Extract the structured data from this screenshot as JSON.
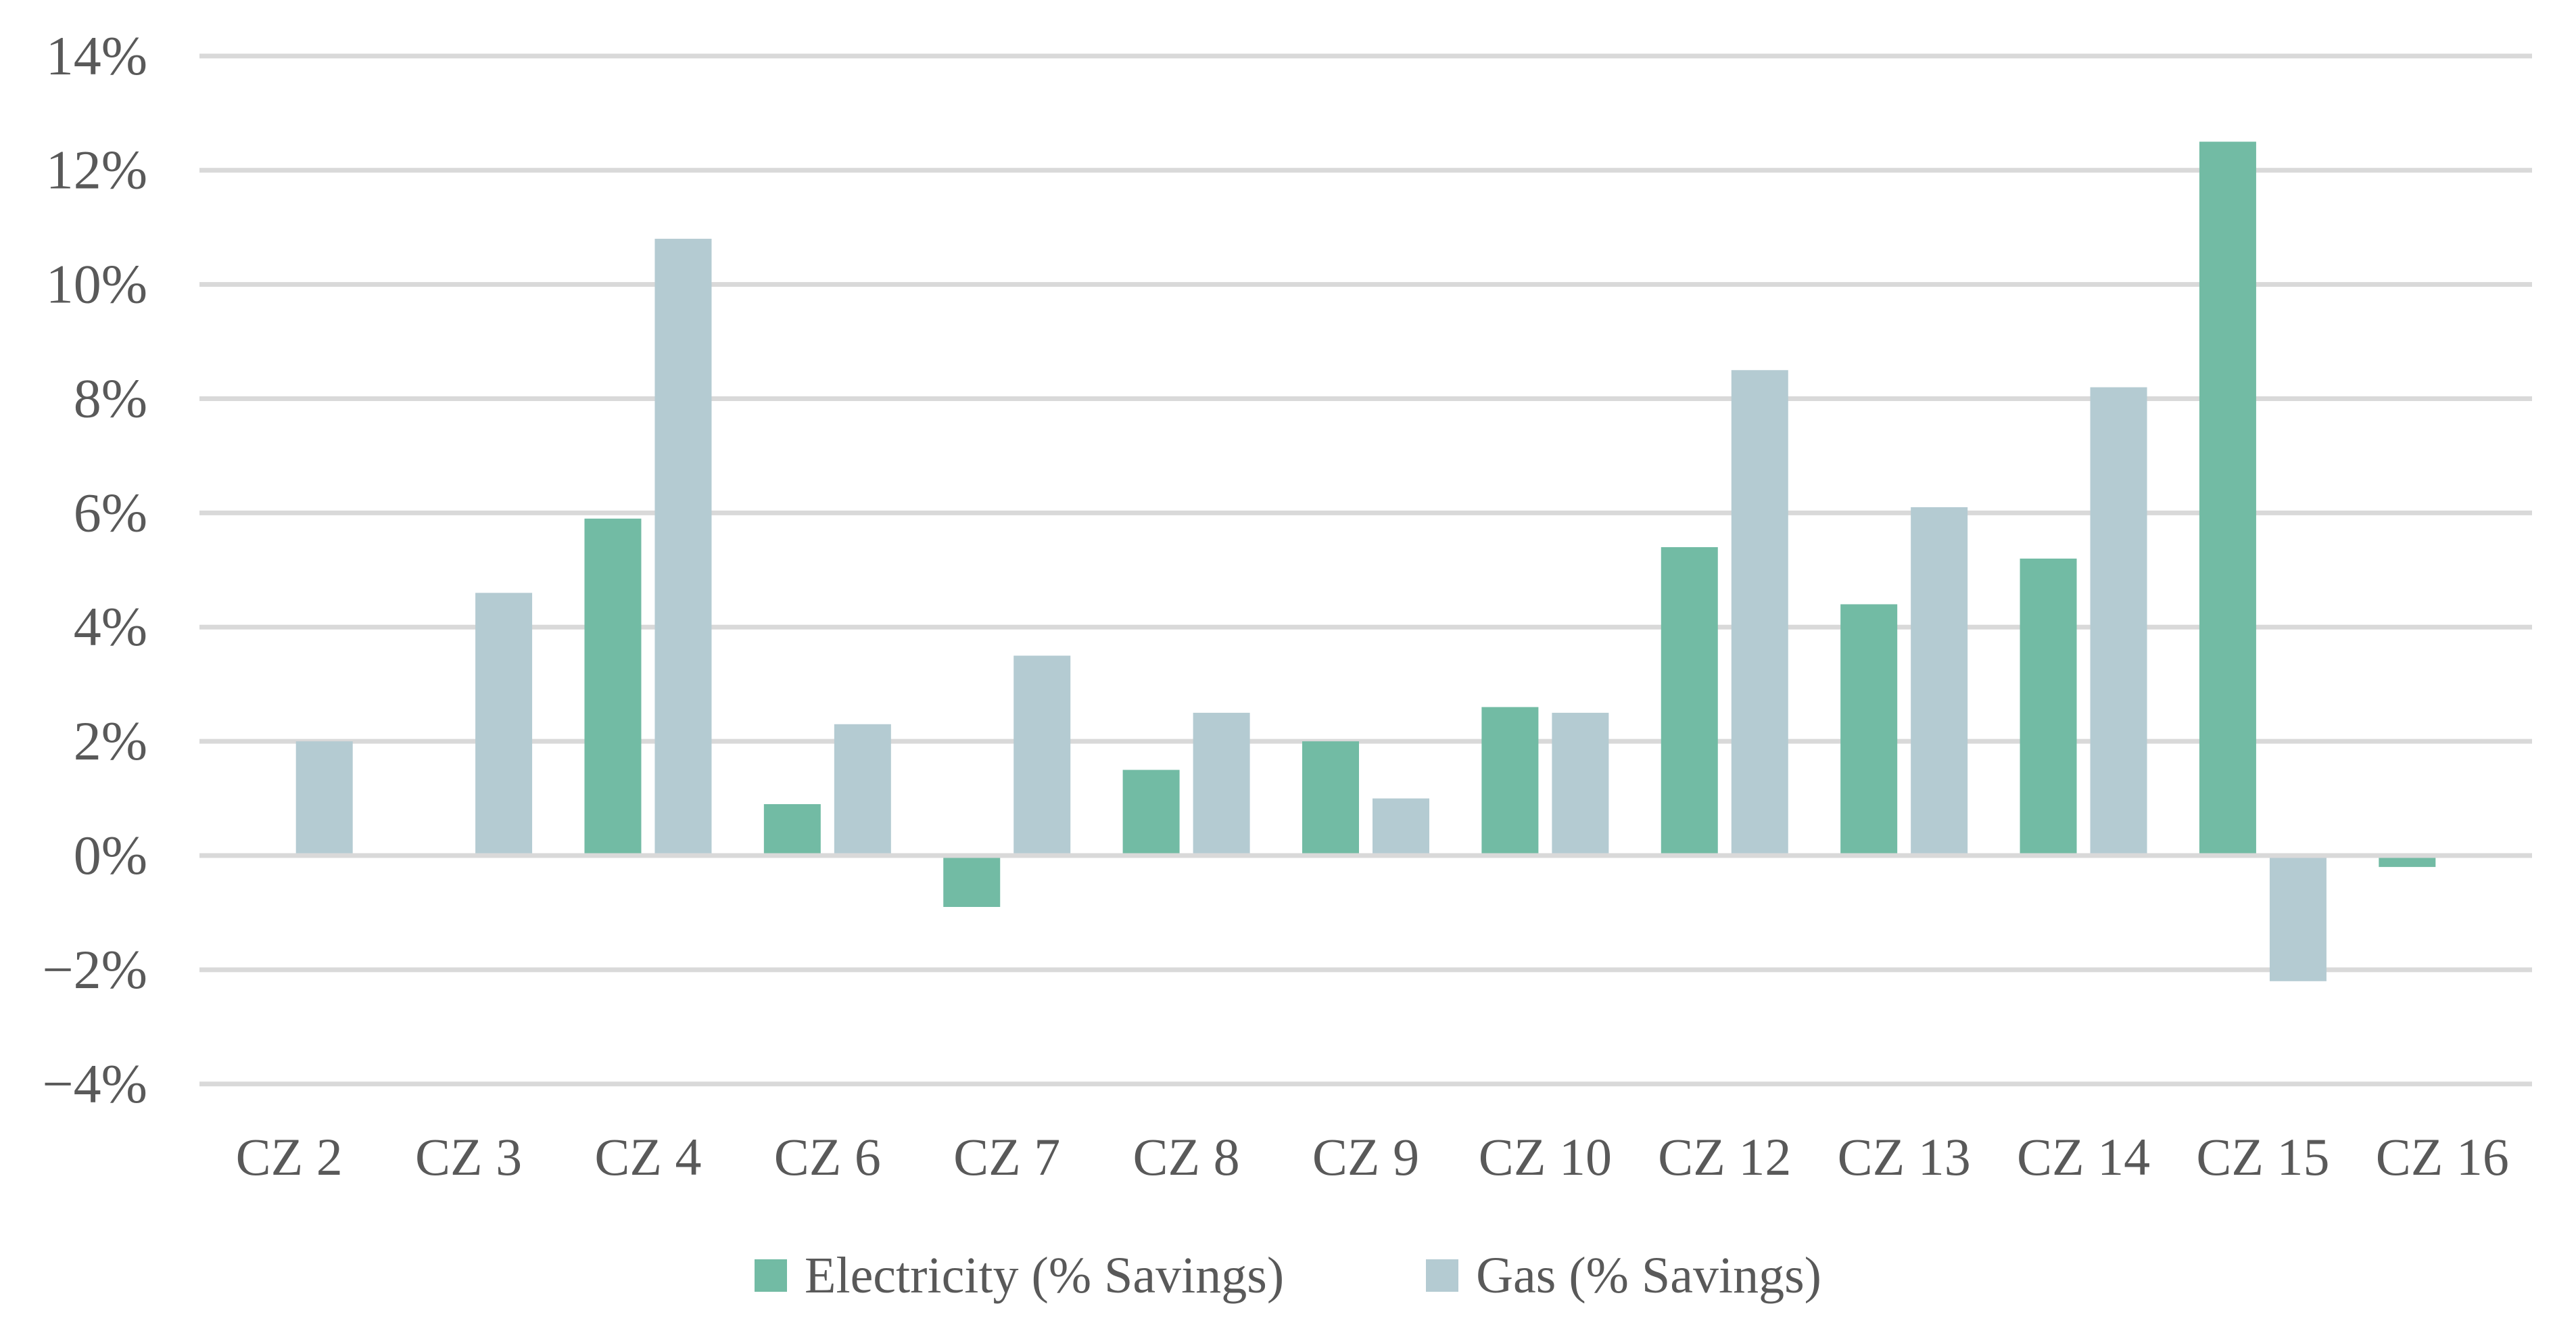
{
  "chart_data": {
    "type": "bar",
    "title": "",
    "xlabel": "",
    "ylabel": "",
    "categories": [
      "CZ 2",
      "CZ 3",
      "CZ 4",
      "CZ 6",
      "CZ 7",
      "CZ 8",
      "CZ 9",
      "CZ 10",
      "CZ 12",
      "CZ 13",
      "CZ 14",
      "CZ 15",
      "CZ 16"
    ],
    "series": [
      {
        "name": "Electricity (% Savings)",
        "color": "#72BBA4",
        "values": [
          0,
          0,
          5.9,
          0.9,
          -0.9,
          1.5,
          2.0,
          2.6,
          5.4,
          4.4,
          5.2,
          12.5,
          -0.2
        ]
      },
      {
        "name": "Gas (% Savings)",
        "color": "#B4CBD2",
        "values": [
          2.0,
          4.6,
          10.8,
          2.3,
          3.5,
          2.5,
          1.0,
          2.5,
          8.5,
          6.1,
          8.2,
          -2.2,
          0
        ]
      }
    ],
    "ylim": [
      -4,
      14
    ],
    "yticks": [
      {
        "value": 14,
        "label": "14%"
      },
      {
        "value": 12,
        "label": "12%"
      },
      {
        "value": 10,
        "label": "10%"
      },
      {
        "value": 8,
        "label": "8%"
      },
      {
        "value": 6,
        "label": "6%"
      },
      {
        "value": 4,
        "label": "4%"
      },
      {
        "value": 2,
        "label": "2%"
      },
      {
        "value": 0,
        "label": "0%"
      },
      {
        "value": -2,
        "label": "−2%"
      },
      {
        "value": -4,
        "label": "−4%"
      }
    ],
    "grid": true,
    "legend_position": "bottom",
    "bars_with_zero_value_not_drawn": true,
    "colors": {
      "text": "#595959",
      "gridline": "#D9D9D9",
      "background": "#FFFFFF"
    }
  }
}
